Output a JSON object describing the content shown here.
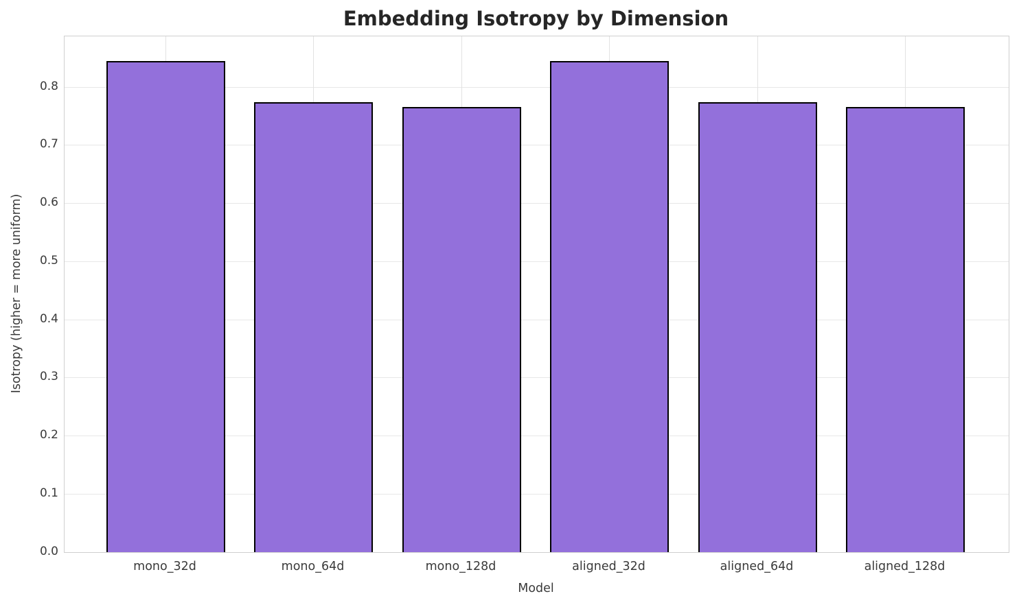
{
  "chart_data": {
    "type": "bar",
    "title": "Embedding Isotropy by Dimension",
    "xlabel": "Model",
    "ylabel": "Isotropy (higher = more uniform)",
    "categories": [
      "mono_32d",
      "mono_64d",
      "mono_128d",
      "aligned_32d",
      "aligned_64d",
      "aligned_128d"
    ],
    "values": [
      0.845,
      0.774,
      0.766,
      0.845,
      0.774,
      0.766
    ],
    "yticks": [
      0.0,
      0.1,
      0.2,
      0.3,
      0.4,
      0.5,
      0.6,
      0.7,
      0.8
    ],
    "ylim": [
      0,
      0.8876
    ],
    "grid": true,
    "legend_position": "none",
    "bar_color": "#9370DB",
    "bar_edge_color": "#000000",
    "grid_color": "#e7e7e7",
    "title_color": "#262626",
    "tick_label_color": "#3a3a3a"
  }
}
